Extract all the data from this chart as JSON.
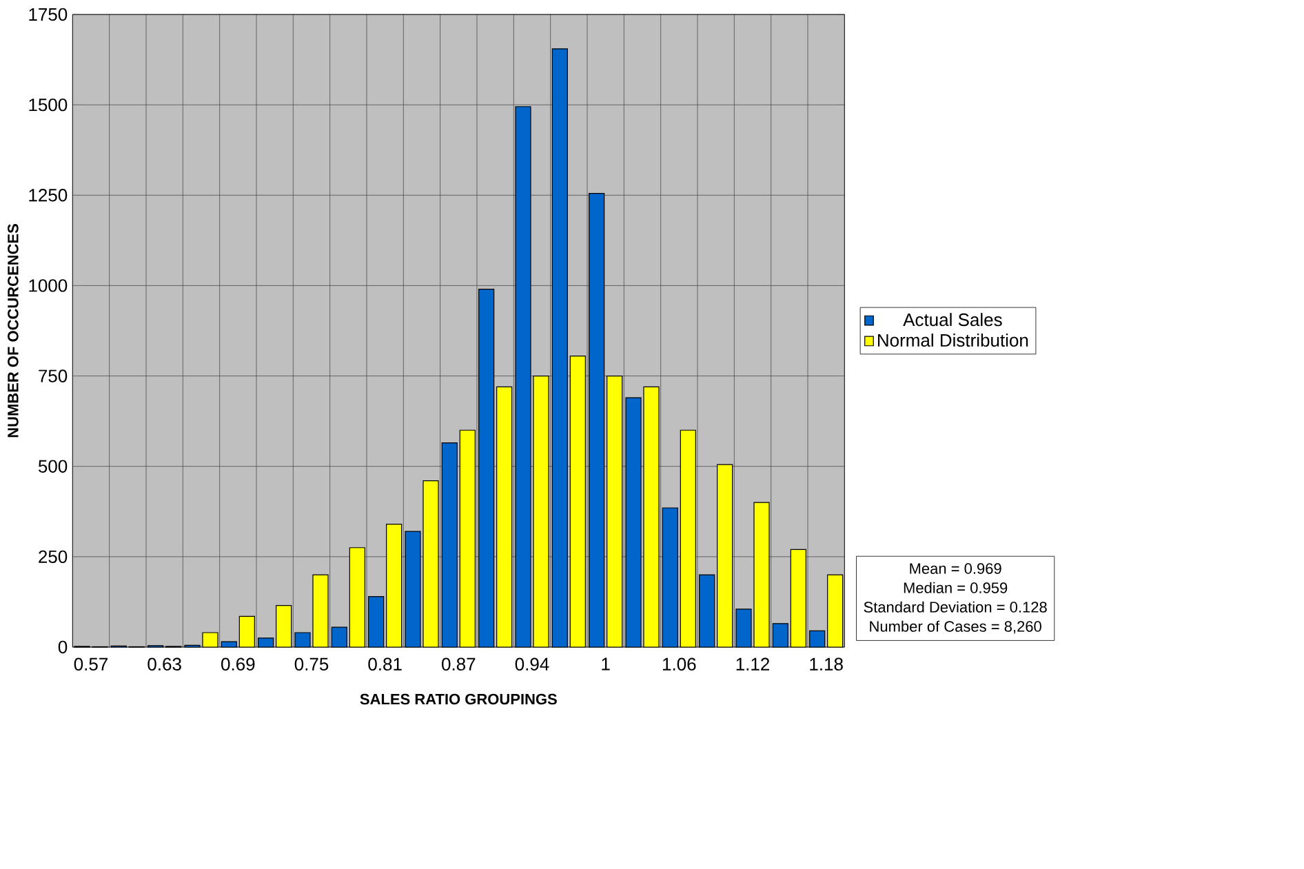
{
  "chart_data": {
    "type": "bar",
    "xlabel": "SALES RATIO GROUPINGS",
    "ylabel": "NUMBER OF OCCURCENCES",
    "categories": [
      "0.57",
      null,
      "0.63",
      null,
      "0.69",
      null,
      "0.75",
      null,
      "0.81",
      null,
      "0.87",
      null,
      "0.94",
      null,
      "1",
      null,
      "1.06",
      null,
      "1.12",
      null,
      "1.18"
    ],
    "series": [
      {
        "name": "Actual Sales",
        "color": "#0066cc",
        "values": [
          2,
          3,
          4,
          5,
          15,
          25,
          40,
          55,
          140,
          320,
          565,
          990,
          1495,
          1655,
          1255,
          690,
          385,
          200,
          105,
          65,
          45
        ]
      },
      {
        "name": "Normal Distribution",
        "color": "#ffff00",
        "values": [
          1,
          1,
          2,
          40,
          85,
          115,
          200,
          275,
          340,
          460,
          600,
          720,
          750,
          805,
          750,
          720,
          600,
          505,
          400,
          270,
          200
        ]
      }
    ],
    "ylim": [
      0,
      1750
    ],
    "yticks": [
      0,
      250,
      500,
      750,
      1000,
      1250,
      1500,
      1750
    ],
    "grid": true,
    "legend": "right",
    "annotations": [
      "Mean = 0.969",
      "Median = 0.959",
      "Standard Deviation = 0.128",
      "Number of Cases = 8,260"
    ]
  }
}
